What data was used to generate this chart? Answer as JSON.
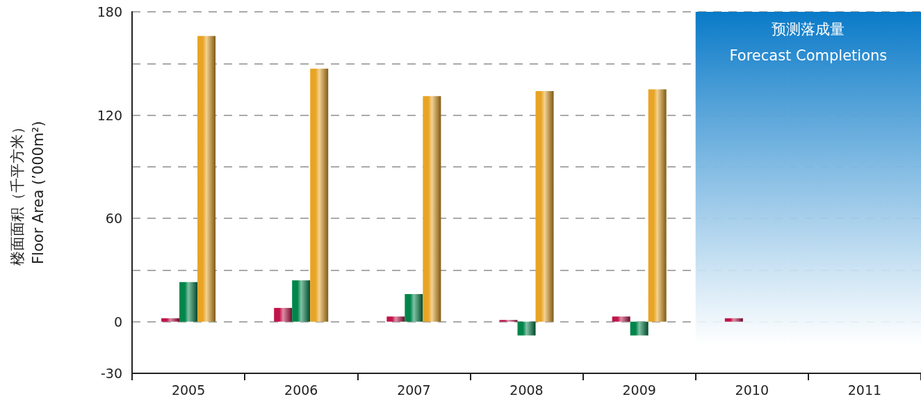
{
  "chart_data": {
    "type": "bar",
    "ylabel": "楼面面积（千平方米）\nFloor Area (’000m²)",
    "categories": [
      "2005",
      "2006",
      "2007",
      "2008",
      "2009",
      "2010",
      "2011"
    ],
    "series": [
      {
        "color": "#c0144b",
        "values": [
          2,
          8,
          3,
          1,
          3,
          2,
          null
        ]
      },
      {
        "color": "#00854a",
        "values": [
          23,
          24,
          16,
          -8,
          -8,
          null,
          null
        ]
      },
      {
        "color": "#e8a424",
        "values": [
          166,
          147,
          131,
          134,
          135,
          null,
          null
        ]
      }
    ],
    "ylim": [
      -30,
      180
    ],
    "yticks": [
      -30,
      0,
      {
        "value": 30,
        "label": null
      },
      60,
      {
        "value": 90,
        "label": null
      },
      120,
      {
        "value": 150,
        "label": null
      },
      180
    ],
    "bands": [
      {
        "axis": "x",
        "from": "2010",
        "to": "2011",
        "label": "预测落成量\nForecast Completions",
        "color": "#0a7ac8"
      }
    ],
    "grid": "y"
  }
}
